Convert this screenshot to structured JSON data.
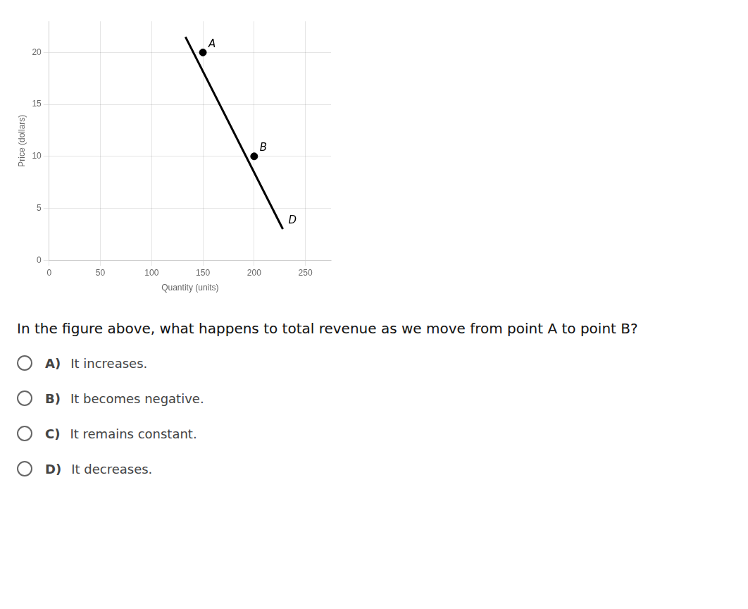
{
  "chart_data": {
    "type": "line",
    "xlabel": "Quantity (units)",
    "ylabel": "Price (dollars)",
    "xlim": [
      0,
      275
    ],
    "ylim": [
      0,
      23
    ],
    "xticks": [
      0,
      50,
      100,
      150,
      200,
      250
    ],
    "yticks": [
      0,
      5,
      10,
      15,
      20
    ],
    "grid": true,
    "series": [
      {
        "type": "line",
        "x": [
          133,
          228
        ],
        "values": [
          21.5,
          3.0
        ],
        "color": "#000000"
      },
      {
        "type": "scatter",
        "x": [
          150,
          200
        ],
        "values": [
          20,
          10
        ],
        "color": "#000000"
      }
    ],
    "annotations": [
      {
        "text": "A",
        "x": 150,
        "y": 20
      },
      {
        "text": "B",
        "x": 200,
        "y": 10
      },
      {
        "text": "D",
        "x": 228,
        "y": 3.0
      }
    ],
    "question": "In the figure above, what happens to total revenue as we move from point A to point B?",
    "choices": [
      {
        "letter": "A)",
        "text": "It increases."
      },
      {
        "letter": "B)",
        "text": "It becomes negative."
      },
      {
        "letter": "C)",
        "text": "It remains constant."
      },
      {
        "letter": "D)",
        "text": "It decreases."
      }
    ]
  }
}
